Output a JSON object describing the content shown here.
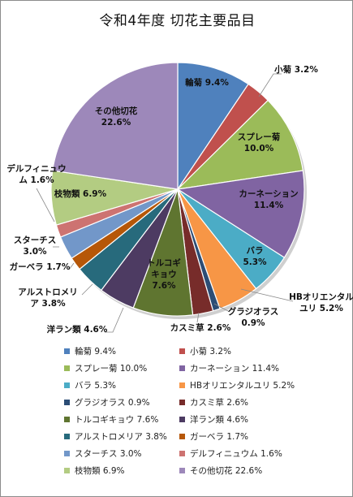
{
  "chart_data": {
    "type": "pie",
    "title": "令和4年度 切花主要品目",
    "slices": [
      {
        "name": "輪菊",
        "value": 9.4,
        "value_label": "9.4%",
        "legend": "輪菊 9.4%",
        "color": "#4f81bd"
      },
      {
        "name": "小菊",
        "value": 3.2,
        "value_label": "3.2%",
        "legend": "小菊 3.2%",
        "color": "#c0504d"
      },
      {
        "name": "スプレー菊",
        "value": 10.0,
        "value_label": "10.0%",
        "legend": "スプレー菊 10.0%",
        "color": "#9bbb59"
      },
      {
        "name": "カーネーション",
        "value": 11.4,
        "value_label": "11.4%",
        "legend": "カーネーション 11.4%",
        "color": "#8064a2"
      },
      {
        "name": "バラ",
        "value": 5.3,
        "value_label": "5.3%",
        "legend": "バラ 5.3%",
        "color": "#4bacc6"
      },
      {
        "name": "HBオリエンタルユリ",
        "value": 5.2,
        "value_label": "5.2%",
        "legend": "HBオリエンタルユリ 5.2%",
        "color": "#f79646"
      },
      {
        "name": "グラジオラス",
        "value": 0.9,
        "value_label": "0.9%",
        "legend": "グラジオラス 0.9%",
        "color": "#2c4d75"
      },
      {
        "name": "カスミ草",
        "value": 2.6,
        "value_label": "2.6%",
        "legend": "カスミ草 2.6%",
        "color": "#772c2a"
      },
      {
        "name": "トルコギキョウ",
        "value": 7.6,
        "value_label": "7.6%",
        "legend": "トルコギキョウ 7.6%",
        "color": "#5f7530"
      },
      {
        "name": "洋ラン類",
        "value": 4.6,
        "value_label": "4.6%",
        "legend": "洋ラン類 4.6%",
        "color": "#4d3b62"
      },
      {
        "name": "アルストロメリア",
        "value": 3.8,
        "value_label": "3.8%",
        "legend": "アルストロメリア 3.8%",
        "color": "#276a7c"
      },
      {
        "name": "ガーベラ",
        "value": 1.7,
        "value_label": "1.7%",
        "legend": "ガーベラ 1.7%",
        "color": "#b65708"
      },
      {
        "name": "スターチス",
        "value": 3.0,
        "value_label": "3.0%",
        "legend": "スターチス 3.0%",
        "color": "#7297c9"
      },
      {
        "name": "デルフィニュウム",
        "value": 1.6,
        "value_label": "1.6%",
        "legend": "デルフィニュウム 1.6%",
        "color": "#cd7371"
      },
      {
        "name": "枝物類",
        "value": 6.9,
        "value_label": "6.9%",
        "legend": "枝物類 6.9%",
        "color": "#b3cc82"
      },
      {
        "name": "その他切花",
        "value": 22.6,
        "value_label": "22.6%",
        "legend": "その他切花 22.6%",
        "color": "#9d88ba"
      }
    ],
    "legend_position": "bottom"
  }
}
